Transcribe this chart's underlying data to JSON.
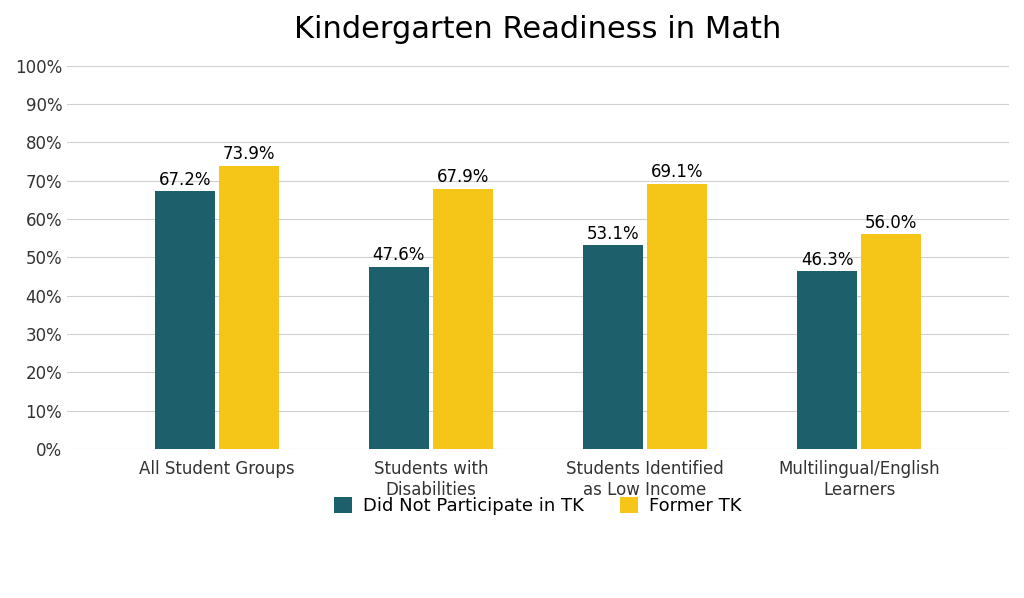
{
  "title": "Kindergarten Readiness in Math",
  "categories": [
    "All Student Groups",
    "Students with\nDisabilities",
    "Students Identified\nas Low Income",
    "Multilingual/English\nLearners"
  ],
  "series": [
    {
      "label": "Did Not Participate in TK",
      "color": "#1d5f6b",
      "values": [
        67.2,
        47.6,
        53.1,
        46.3
      ]
    },
    {
      "label": "Former TK",
      "color": "#f5c518",
      "values": [
        73.9,
        67.9,
        69.1,
        56.0
      ]
    }
  ],
  "ylim": [
    0,
    100
  ],
  "yticks": [
    0,
    10,
    20,
    30,
    40,
    50,
    60,
    70,
    80,
    90,
    100
  ],
  "bar_width": 0.28,
  "bar_gap": 0.04,
  "title_fontsize": 22,
  "tick_fontsize": 12,
  "value_fontsize": 12,
  "legend_fontsize": 13,
  "background_color": "#ffffff",
  "grid_color": "#d0d0d0",
  "figure_width": 10.24,
  "figure_height": 5.98
}
